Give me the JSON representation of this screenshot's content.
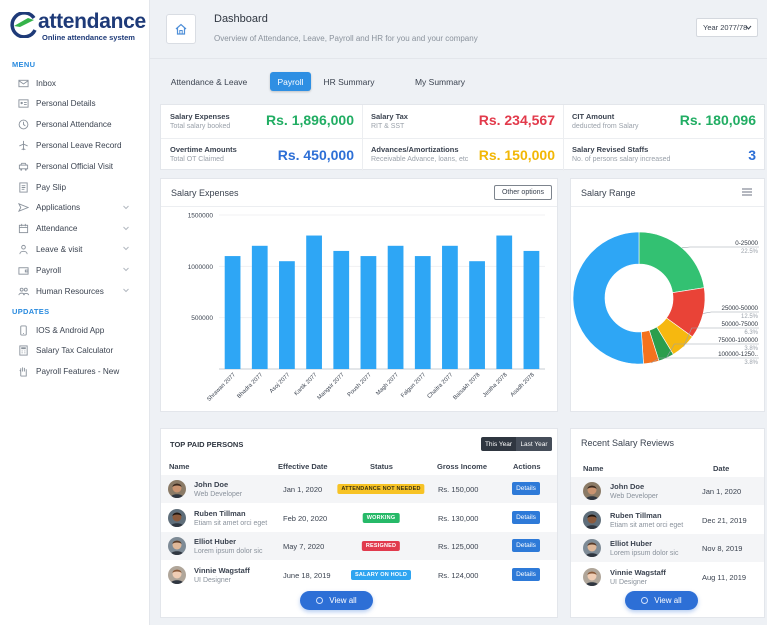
{
  "app": {
    "logo_text": "attendance",
    "logo_sub": "Online attendance system"
  },
  "sidebar": {
    "menu_title": "MENU",
    "updates_title": "UPDATES",
    "menu_items": [
      {
        "label": "Inbox",
        "icon": "mail-icon"
      },
      {
        "label": "Personal Details",
        "icon": "id-card-icon"
      },
      {
        "label": "Personal Attendance",
        "icon": "clock-icon"
      },
      {
        "label": "Personal Leave Record",
        "icon": "plane-icon"
      },
      {
        "label": "Personal Official Visit",
        "icon": "car-icon"
      },
      {
        "label": "Pay Slip",
        "icon": "slip-icon"
      },
      {
        "label": "Applications",
        "icon": "send-icon"
      },
      {
        "label": "Attendance",
        "icon": "calendar-icon"
      },
      {
        "label": "Leave & visit",
        "icon": "person-icon"
      },
      {
        "label": "Payroll",
        "icon": "wallet-icon"
      },
      {
        "label": "Human Resources",
        "icon": "people-icon"
      }
    ],
    "update_items": [
      {
        "label": "IOS & Android App",
        "icon": "mobile-icon"
      },
      {
        "label": "Salary Tax Calculator",
        "icon": "calculator-icon"
      },
      {
        "label": "Payroll Features - New",
        "icon": "hand-icon"
      }
    ]
  },
  "header": {
    "title": "Dashboard",
    "subtitle": "Overview of Attendance, Leave, Payroll and HR for you and your company",
    "year": "Year 2077/78"
  },
  "tabs": [
    {
      "label": "Attendance & Leave"
    },
    {
      "label": "Payroll"
    },
    {
      "label": "HR Summary"
    },
    {
      "label": "My Summary"
    }
  ],
  "stats": [
    {
      "label": "Salary Expenses",
      "sub": "Total salary booked",
      "value": "Rs. 1,896,000",
      "color": "#21ad63"
    },
    {
      "label": "Salary Tax",
      "sub": "RIT & SST",
      "value": "Rs. 234,567",
      "color": "#e23a4b"
    },
    {
      "label": "CIT Amount",
      "sub": "deducted from Salary",
      "value": "Rs. 180,096",
      "color": "#21ad63"
    },
    {
      "label": "Overtime Amounts",
      "sub": "Total OT Claimed",
      "value": "Rs. 450,000",
      "color": "#2d6fd6"
    },
    {
      "label": "Advances/Amortizations",
      "sub": "Receivable Advance, loans, etc",
      "value": "Rs. 150,000",
      "color": "#f2b705"
    },
    {
      "label": "Salary Revised Staffs",
      "sub": "No. of persons salary increased",
      "value": "3",
      "color": "#2d6fd6"
    }
  ],
  "salary_expenses": {
    "title": "Salary Expenses",
    "other_options": "Other options"
  },
  "salary_range": {
    "title": "Salary Range"
  },
  "chart_data": [
    {
      "type": "bar",
      "title": "Salary Expenses",
      "categories": [
        "Shrawan 2077",
        "Bhadra 2077",
        "Asoj 2077",
        "Kartik 2077",
        "Mangsir 2077",
        "Poush 2077",
        "Magh 2077",
        "Falgun 2077",
        "Chaitra 2077",
        "Baisakh 2078",
        "Jestha 2078",
        "Asadh 2078"
      ],
      "values": [
        1100000,
        1200000,
        1050000,
        1300000,
        1150000,
        1100000,
        1200000,
        1100000,
        1200000,
        1050000,
        1300000,
        1150000
      ],
      "yticks": [
        "1500000",
        "1000000",
        "500000",
        "0"
      ],
      "ylim": [
        0,
        1500000
      ],
      "color": "#2ea6f5"
    },
    {
      "type": "pie",
      "title": "Salary Range",
      "donut": true,
      "slices": [
        {
          "label": "0-25000",
          "pct": "22.5%",
          "value": 22.5,
          "color": "#33c172"
        },
        {
          "label": "25000-50000",
          "pct": "12.5%",
          "value": 12.5,
          "color": "#e94337"
        },
        {
          "label": "50000-75000",
          "pct": "6.3%",
          "value": 6.3,
          "color": "#f6b80f"
        },
        {
          "label": "75000-100000",
          "pct": "3.8%",
          "value": 3.8,
          "color": "#2b9e4d"
        },
        {
          "label": "100000-1250..",
          "pct": "3.8%",
          "value": 3.8,
          "color": "#f4721e"
        },
        {
          "label": "",
          "pct": "",
          "value": 51.1,
          "color": "#2ea6f5"
        }
      ]
    }
  ],
  "top_paid": {
    "title": "TOP PAID PERSONS",
    "this_year": "This Year",
    "last_year": "Last Year",
    "headers": [
      "Name",
      "Effective Date",
      "Status",
      "Gross Income",
      "Actions"
    ],
    "rows": [
      {
        "name": "John Doe",
        "role": "Web Developer",
        "date": "Jan 1, 2020",
        "status": "ATTENDANCE NOT NEEDED",
        "status_bg": "#f7c325",
        "status_fg": "#3b3212",
        "income": "Rs. 150,000",
        "action": "Details"
      },
      {
        "name": "Ruben Tillman",
        "role": "Etiam sit amet orci eget",
        "date": "Feb 20, 2020",
        "status": "WORKING",
        "status_bg": "#26b968",
        "status_fg": "#ffffff",
        "income": "Rs. 130,000",
        "action": "Details"
      },
      {
        "name": "Elliot Huber",
        "role": "Lorem ipsum dolor sic",
        "date": "May 7, 2020",
        "status": "RESIGNED",
        "status_bg": "#e13a4d",
        "status_fg": "#ffffff",
        "income": "Rs. 125,000",
        "action": "Details"
      },
      {
        "name": "Vinnie Wagstaff",
        "role": "UI Designer",
        "date": "June 18, 2019",
        "status": "SALARY ON HOLD",
        "status_bg": "#2fa4f0",
        "status_fg": "#ffffff",
        "income": "Rs. 124,000",
        "action": "Details"
      }
    ],
    "view_all": "View all"
  },
  "recent_reviews": {
    "title": "Recent Salary Reviews",
    "headers": [
      "Name",
      "Date"
    ],
    "rows": [
      {
        "name": "John Doe",
        "role": "Web Developer",
        "date": "Jan 1, 2020"
      },
      {
        "name": "Ruben Tillman",
        "role": "Etiam sit amet orci eget",
        "date": "Dec 21, 2019"
      },
      {
        "name": "Elliot Huber",
        "role": "Lorem ipsum dolor sic",
        "date": "Nov 8, 2019"
      },
      {
        "name": "Vinnie Wagstaff",
        "role": "UI Designer",
        "date": "Aug 11, 2019"
      }
    ],
    "view_all": "View all"
  }
}
